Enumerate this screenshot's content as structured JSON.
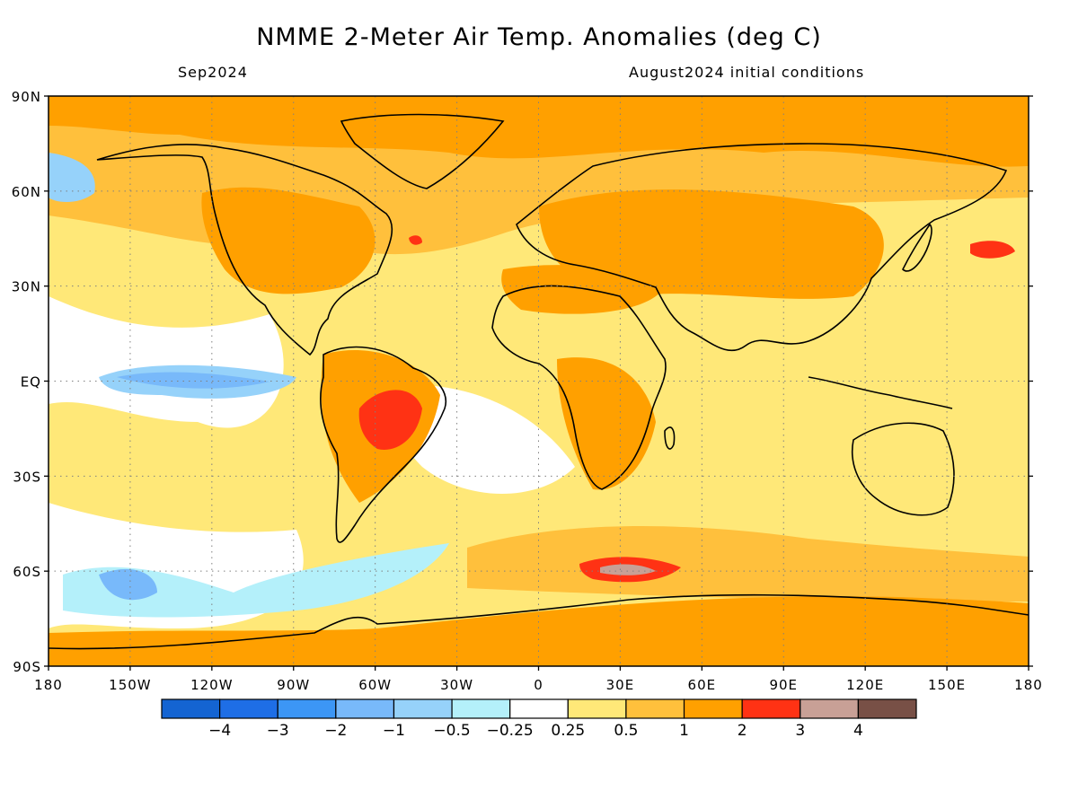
{
  "header": {
    "title": "NMME 2-Meter Air Temp. Anomalies (deg C)",
    "valid_month": "Sep2024",
    "init_conditions": "August2024 initial conditions"
  },
  "map": {
    "projection": "equirectangular",
    "lon_range": [
      -180,
      180
    ],
    "lat_range": [
      -90,
      90
    ],
    "gridlines": "dotted",
    "lat_labels": [
      {
        "lat": 90,
        "label": "90N"
      },
      {
        "lat": 60,
        "label": "60N"
      },
      {
        "lat": 30,
        "label": "30N"
      },
      {
        "lat": 0,
        "label": "EQ"
      },
      {
        "lat": -30,
        "label": "30S"
      },
      {
        "lat": -60,
        "label": "60S"
      },
      {
        "lat": -90,
        "label": "90S"
      }
    ],
    "lon_labels": [
      {
        "lon": -180,
        "label": "180"
      },
      {
        "lon": -150,
        "label": "150W"
      },
      {
        "lon": -120,
        "label": "120W"
      },
      {
        "lon": -90,
        "label": "90W"
      },
      {
        "lon": -60,
        "label": "60W"
      },
      {
        "lon": -30,
        "label": "30W"
      },
      {
        "lon": 0,
        "label": "0"
      },
      {
        "lon": 30,
        "label": "30E"
      },
      {
        "lon": 60,
        "label": "60E"
      },
      {
        "lon": 90,
        "label": "90E"
      },
      {
        "lon": 120,
        "label": "120E"
      },
      {
        "lon": 150,
        "label": "150E"
      },
      {
        "lon": 180,
        "label": "180"
      }
    ]
  },
  "colorbar": {
    "colors": [
      "#1464d2",
      "#1e6ee6",
      "#3c96f5",
      "#78b9fa",
      "#96d2fa",
      "#b4f0fa",
      "#ffffff",
      "#ffe878",
      "#ffc03c",
      "#ffa000",
      "#ff3214",
      "#c8a096",
      "#785046"
    ],
    "tick_labels": [
      "-4",
      "-3",
      "-2",
      "-1",
      "-0.5",
      "-0.25",
      "0.25",
      "0.5",
      "1",
      "2",
      "3",
      "4"
    ]
  },
  "anomaly_regions": [
    {
      "name": "Arctic Ocean",
      "lon": [
        -180,
        180
      ],
      "lat": [
        80,
        90
      ],
      "bin": "1 to 2"
    },
    {
      "name": "North America",
      "lon": [
        -125,
        -70
      ],
      "lat": [
        25,
        60
      ],
      "bin": "1 to 2"
    },
    {
      "name": "Sahara",
      "lon": [
        -15,
        35
      ],
      "lat": [
        15,
        32
      ],
      "bin": "1 to 2"
    },
    {
      "name": "Eurasia",
      "lon": [
        30,
        140
      ],
      "lat": [
        30,
        70
      ],
      "bin": "1 to 2"
    },
    {
      "name": "Central South America",
      "lon": [
        -60,
        -40
      ],
      "lat": [
        -25,
        -5
      ],
      "bin": "2 to 3"
    },
    {
      "name": "Southern Ocean near 30E",
      "lon": [
        10,
        45
      ],
      "lat": [
        -63,
        -55
      ],
      "bin": "3 to 4"
    },
    {
      "name": "Northwest Pacific",
      "lon": [
        145,
        175
      ],
      "lat": [
        35,
        42
      ],
      "bin": "2 to 3"
    },
    {
      "name": "Antarctica",
      "lon": [
        -180,
        180
      ],
      "lat": [
        -90,
        -66
      ],
      "bin": "1 to 2"
    },
    {
      "name": "Equatorial East Pacific",
      "lon": [
        -150,
        -100
      ],
      "lat": [
        -5,
        5
      ],
      "bin": "-1 to -0.5"
    },
    {
      "name": "Southern Pacific Ocean",
      "lon": [
        -160,
        -60
      ],
      "lat": [
        -70,
        -55
      ],
      "bin": "-0.5 to -0.25"
    }
  ]
}
